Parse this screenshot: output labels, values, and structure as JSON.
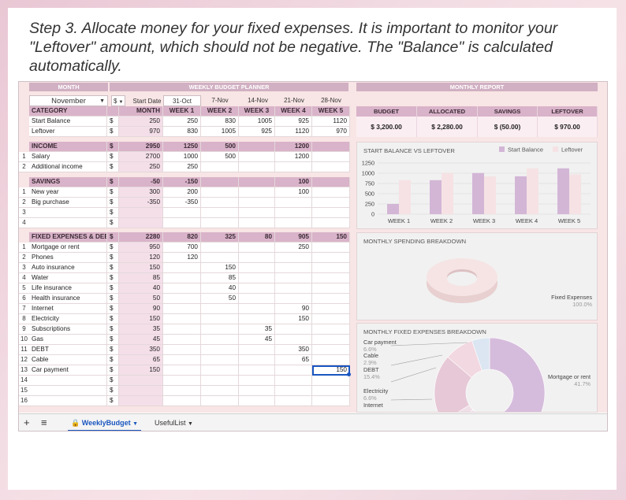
{
  "instruction": "Step 3. Allocate money for your fixed expenses. It is important to monitor your \"Leftover\" amount, which should not be negative. The \"Balance\" is calculated automatically.",
  "top_headers": {
    "month": "MONTH",
    "weekly": "WEEKLY BUDGET PLANNER",
    "report": "MONTHLY REPORT"
  },
  "month_select": {
    "value": "November",
    "currency": "$",
    "start_date_label": "Start Date"
  },
  "dates": [
    "31-Oct",
    "7-Nov",
    "14-Nov",
    "21-Nov",
    "28-Nov"
  ],
  "columns": {
    "category": "CATEGORY",
    "month": "MONTH",
    "weeks": [
      "WEEK 1",
      "WEEK 2",
      "WEEK 3",
      "WEEK 4",
      "WEEK 5"
    ]
  },
  "summary_rows": [
    {
      "label": "Start Balance",
      "cur": "$",
      "month": "250",
      "w": [
        "250",
        "830",
        "1005",
        "925",
        "1120"
      ]
    },
    {
      "label": "Leftover",
      "cur": "$",
      "month": "970",
      "w": [
        "830",
        "1005",
        "925",
        "1120",
        "970"
      ]
    }
  ],
  "income": {
    "header": {
      "label": "INCOME",
      "cur": "$",
      "month": "2950",
      "w": [
        "1250",
        "500",
        "",
        "1200",
        ""
      ]
    },
    "rows": [
      {
        "n": "1",
        "label": "Salary",
        "cur": "$",
        "month": "2700",
        "w": [
          "1000",
          "500",
          "",
          "1200",
          ""
        ]
      },
      {
        "n": "2",
        "label": "Additional income",
        "cur": "$",
        "month": "250",
        "w": [
          "250",
          "",
          "",
          "",
          ""
        ]
      }
    ]
  },
  "savings": {
    "header": {
      "label": "SAVINGS",
      "cur": "$",
      "month": "-50",
      "w": [
        "-150",
        "",
        "",
        "100",
        ""
      ]
    },
    "rows": [
      {
        "n": "1",
        "label": "New year",
        "cur": "$",
        "month": "300",
        "w": [
          "200",
          "",
          "",
          "100",
          ""
        ]
      },
      {
        "n": "2",
        "label": "Big purchase",
        "cur": "$",
        "month": "-350",
        "w": [
          "-350",
          "",
          "",
          "",
          ""
        ]
      },
      {
        "n": "3",
        "label": "",
        "cur": "$",
        "month": "",
        "w": [
          "",
          "",
          "",
          "",
          ""
        ]
      },
      {
        "n": "4",
        "label": "",
        "cur": "$",
        "month": "",
        "w": [
          "",
          "",
          "",
          "",
          ""
        ]
      }
    ]
  },
  "fixed": {
    "header": {
      "label": "FIXED EXPENSES & DEBTS",
      "cur": "$",
      "month": "2280",
      "w": [
        "820",
        "325",
        "80",
        "905",
        "150"
      ]
    },
    "rows": [
      {
        "n": "1",
        "label": "Mortgage or rent",
        "cur": "$",
        "month": "950",
        "w": [
          "700",
          "",
          "",
          "250",
          ""
        ]
      },
      {
        "n": "2",
        "label": "Phones",
        "cur": "$",
        "month": "120",
        "w": [
          "120",
          "",
          "",
          "",
          ""
        ]
      },
      {
        "n": "3",
        "label": "Auto insurance",
        "cur": "$",
        "month": "150",
        "w": [
          "",
          "150",
          "",
          "",
          ""
        ]
      },
      {
        "n": "4",
        "label": "Water",
        "cur": "$",
        "month": "85",
        "w": [
          "",
          "85",
          "",
          "",
          ""
        ]
      },
      {
        "n": "5",
        "label": "Life insurance",
        "cur": "$",
        "month": "40",
        "w": [
          "",
          "40",
          "",
          "",
          ""
        ]
      },
      {
        "n": "6",
        "label": "Health insurance",
        "cur": "$",
        "month": "50",
        "w": [
          "",
          "50",
          "",
          "",
          ""
        ]
      },
      {
        "n": "7",
        "label": "Internet",
        "cur": "$",
        "month": "90",
        "w": [
          "",
          "",
          "",
          "90",
          ""
        ]
      },
      {
        "n": "8",
        "label": "Electricity",
        "cur": "$",
        "month": "150",
        "w": [
          "",
          "",
          "",
          "150",
          ""
        ]
      },
      {
        "n": "9",
        "label": "Subscriptions",
        "cur": "$",
        "month": "35",
        "w": [
          "",
          "",
          "35",
          "",
          ""
        ]
      },
      {
        "n": "10",
        "label": "Gas",
        "cur": "$",
        "month": "45",
        "w": [
          "",
          "",
          "45",
          "",
          ""
        ]
      },
      {
        "n": "11",
        "label": "DEBT",
        "cur": "$",
        "month": "350",
        "w": [
          "",
          "",
          "",
          "350",
          ""
        ]
      },
      {
        "n": "12",
        "label": "Cable",
        "cur": "$",
        "month": "65",
        "w": [
          "",
          "",
          "",
          "65",
          ""
        ]
      },
      {
        "n": "13",
        "label": "Car payment",
        "cur": "$",
        "month": "150",
        "w": [
          "",
          "",
          "",
          "",
          "150"
        ]
      },
      {
        "n": "14",
        "label": "",
        "cur": "$",
        "month": "",
        "w": [
          "",
          "",
          "",
          "",
          ""
        ]
      },
      {
        "n": "15",
        "label": "",
        "cur": "$",
        "month": "",
        "w": [
          "",
          "",
          "",
          "",
          ""
        ]
      },
      {
        "n": "16",
        "label": "",
        "cur": "$",
        "month": "",
        "w": [
          "",
          "",
          "",
          "",
          ""
        ]
      }
    ]
  },
  "report": {
    "labels": [
      "BUDGET",
      "ALLOCATED",
      "SAVINGS",
      "LEFTOVER"
    ],
    "values": [
      "$ 3,200.00",
      "$ 2,280.00",
      "$ (50.00)",
      "$ 970.00"
    ]
  },
  "chart_data": [
    {
      "type": "bar",
      "title": "START BALANCE VS LEFTOVER",
      "categories": [
        "WEEK 1",
        "WEEK 2",
        "WEEK 3",
        "WEEK 4",
        "WEEK 5"
      ],
      "series": [
        {
          "name": "Start Balance",
          "values": [
            250,
            830,
            1005,
            925,
            1120
          ],
          "color": "#d3b6d6"
        },
        {
          "name": "Leftover",
          "values": [
            830,
            1005,
            925,
            1120,
            970
          ],
          "color": "#f6e2e4"
        }
      ],
      "yticks": [
        "1250",
        "1000",
        "750",
        "500",
        "250",
        "0"
      ],
      "ylim": [
        0,
        1250
      ],
      "legend": "top-right"
    },
    {
      "type": "pie",
      "title": "MONTHLY SPENDING BREAKDOWN",
      "slices": [
        {
          "label": "Fixed Expenses",
          "pct": "100.0%",
          "value": 100,
          "color": "#f5e1e1"
        }
      ]
    },
    {
      "type": "pie",
      "title": "MONTHLY FIXED EXPENSES BREAKDOWN",
      "slices": [
        {
          "label": "Mortgage or rent",
          "pct": "41.7%",
          "value": 41.7,
          "color": "#d6bcdc"
        },
        {
          "label": "Car payment",
          "pct": "6.6%",
          "value": 6.6,
          "color": "#f1e6f0"
        },
        {
          "label": "Cable",
          "pct": "2.9%",
          "value": 2.9,
          "color": "#efe0e8"
        },
        {
          "label": "DEBT",
          "pct": "15.4%",
          "value": 15.4,
          "color": "#e7c8d6"
        },
        {
          "label": "Electricity",
          "pct": "6.6%",
          "value": 6.6,
          "color": "#f2d8e0"
        },
        {
          "label": "Internet",
          "pct": "",
          "value": 4.0,
          "color": "#dbe6f2"
        }
      ]
    }
  ],
  "tabs": {
    "add": "+",
    "menu": "≡",
    "sheet1": "WeeklyBudget",
    "sheet2": "UsefulList"
  }
}
